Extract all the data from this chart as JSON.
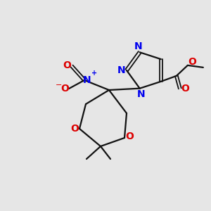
{
  "bg_color": "#e6e6e6",
  "bond_color": "#111111",
  "n_color": "#0000ee",
  "o_color": "#dd0000",
  "lw": 1.6,
  "lw2": 1.3,
  "figsize": [
    3.0,
    3.0
  ],
  "dpi": 100,
  "xlim": [
    0,
    300
  ],
  "ylim": [
    0,
    300
  ]
}
